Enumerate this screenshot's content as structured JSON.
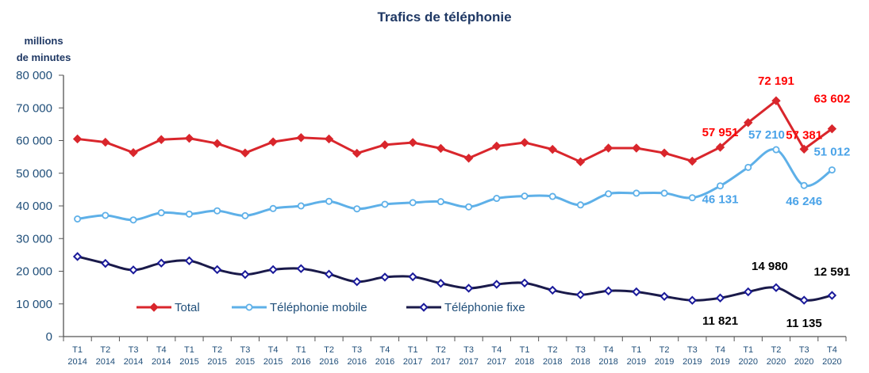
{
  "chart_data": {
    "type": "line",
    "title": "Trafics de téléphonie",
    "ylabel": [
      "millions",
      "de minutes"
    ],
    "xlabel": "",
    "ylim": [
      0,
      80000
    ],
    "yticks": [
      "0",
      "10 000",
      "20 000",
      "30 000",
      "40 000",
      "50 000",
      "60 000",
      "70 000",
      "80 000"
    ],
    "ytick_values": [
      0,
      10000,
      20000,
      30000,
      40000,
      50000,
      60000,
      70000,
      80000
    ],
    "categories": [
      [
        "T1",
        "2014"
      ],
      [
        "T2",
        "2014"
      ],
      [
        "T3",
        "2014"
      ],
      [
        "T4",
        "2014"
      ],
      [
        "T1",
        "2015"
      ],
      [
        "T2",
        "2015"
      ],
      [
        "T3",
        "2015"
      ],
      [
        "T4",
        "2015"
      ],
      [
        "T1",
        "2016"
      ],
      [
        "T2",
        "2016"
      ],
      [
        "T3",
        "2016"
      ],
      [
        "T4",
        "2016"
      ],
      [
        "T1",
        "2017"
      ],
      [
        "T2",
        "2017"
      ],
      [
        "T3",
        "2017"
      ],
      [
        "T4",
        "2017"
      ],
      [
        "T1",
        "2018"
      ],
      [
        "T2",
        "2018"
      ],
      [
        "T3",
        "2018"
      ],
      [
        "T4",
        "2018"
      ],
      [
        "T1",
        "2019"
      ],
      [
        "T2",
        "2019"
      ],
      [
        "T3",
        "2019"
      ],
      [
        "T4",
        "2019"
      ],
      [
        "T1",
        "2020"
      ],
      [
        "T2",
        "2020"
      ],
      [
        "T3",
        "2020"
      ],
      [
        "T4",
        "2020"
      ]
    ],
    "legend_position": "bottom-left-inside",
    "grid": false,
    "series": [
      {
        "name": "Total",
        "color": "#d9262c",
        "marker": "diamond-filled",
        "values": [
          60500,
          59500,
          56300,
          60300,
          60700,
          59100,
          56200,
          59600,
          60900,
          60500,
          56100,
          58700,
          59400,
          57600,
          54600,
          58300,
          59400,
          57300,
          53500,
          57700,
          57700,
          56200,
          53700,
          57951,
          65500,
          72191,
          57381,
          63602
        ],
        "labels": {
          "23": "57 951",
          "25": "72 191",
          "26": "57 381",
          "27": "63 602"
        },
        "label_color": "#ff0000"
      },
      {
        "name": "Téléphonie mobile",
        "color": "#5eb0e8",
        "marker": "circle-open",
        "values": [
          36000,
          37100,
          35700,
          37900,
          37500,
          38500,
          37000,
          39200,
          40000,
          41400,
          39100,
          40500,
          41000,
          41300,
          39700,
          42300,
          43000,
          42900,
          40300,
          43700,
          43900,
          43900,
          42500,
          46131,
          51800,
          57210,
          46246,
          51012
        ],
        "labels": {
          "23": "46 131",
          "25": "57 210",
          "26": "46 246",
          "27": "51 012"
        },
        "label_color": "#4aa3e8"
      },
      {
        "name": "Téléphonie fixe",
        "color": "#1a1a4a",
        "marker": "diamond-open",
        "values": [
          24500,
          22400,
          20400,
          22500,
          23200,
          20500,
          19000,
          20500,
          20800,
          19100,
          16800,
          18200,
          18300,
          16300,
          14800,
          16000,
          16400,
          14200,
          12800,
          14000,
          13700,
          12300,
          11100,
          11821,
          13700,
          14980,
          11135,
          12591
        ],
        "labels": {
          "23": "11 821",
          "25": "14 980",
          "26": "11 135",
          "27": "12 591"
        },
        "label_color": "#000000"
      }
    ]
  }
}
